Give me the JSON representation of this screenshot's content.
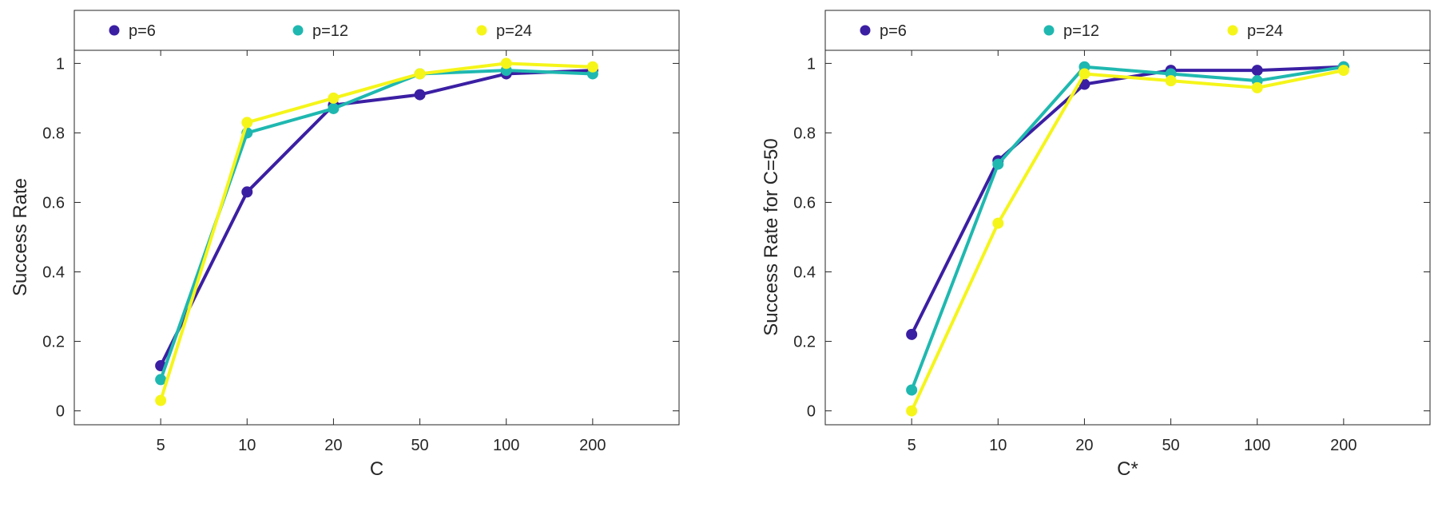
{
  "chart_data": [
    {
      "type": "line",
      "xlabel": "C",
      "ylabel": "Success Rate",
      "categories": [
        "5",
        "10",
        "20",
        "50",
        "100",
        "200"
      ],
      "yticks": [
        "0",
        "0.2",
        "0.4",
        "0.6",
        "0.8",
        "1"
      ],
      "ylim": [
        -0.04,
        1.04
      ],
      "legend_position": "top",
      "series": [
        {
          "name": "p=6",
          "color": "#3b1fa3",
          "values": [
            0.13,
            0.63,
            0.88,
            0.91,
            0.97,
            0.98
          ]
        },
        {
          "name": "p=12",
          "color": "#1fb8b0",
          "values": [
            0.09,
            0.8,
            0.87,
            0.97,
            0.98,
            0.97
          ]
        },
        {
          "name": "p=24",
          "color": "#f5f51a",
          "values": [
            0.03,
            0.83,
            0.9,
            0.97,
            1.0,
            0.99
          ]
        }
      ]
    },
    {
      "type": "line",
      "xlabel": "C*",
      "ylabel": "Success Rate for C=50",
      "categories": [
        "5",
        "10",
        "20",
        "50",
        "100",
        "200"
      ],
      "yticks": [
        "0",
        "0.2",
        "0.4",
        "0.6",
        "0.8",
        "1"
      ],
      "ylim": [
        -0.04,
        1.04
      ],
      "legend_position": "top",
      "series": [
        {
          "name": "p=6",
          "color": "#3b1fa3",
          "values": [
            0.22,
            0.72,
            0.94,
            0.98,
            0.98,
            0.99
          ]
        },
        {
          "name": "p=12",
          "color": "#1fb8b0",
          "values": [
            0.06,
            0.71,
            0.99,
            0.97,
            0.95,
            0.99
          ]
        },
        {
          "name": "p=24",
          "color": "#f5f51a",
          "values": [
            0.0,
            0.54,
            0.97,
            0.95,
            0.93,
            0.98
          ]
        }
      ]
    }
  ]
}
